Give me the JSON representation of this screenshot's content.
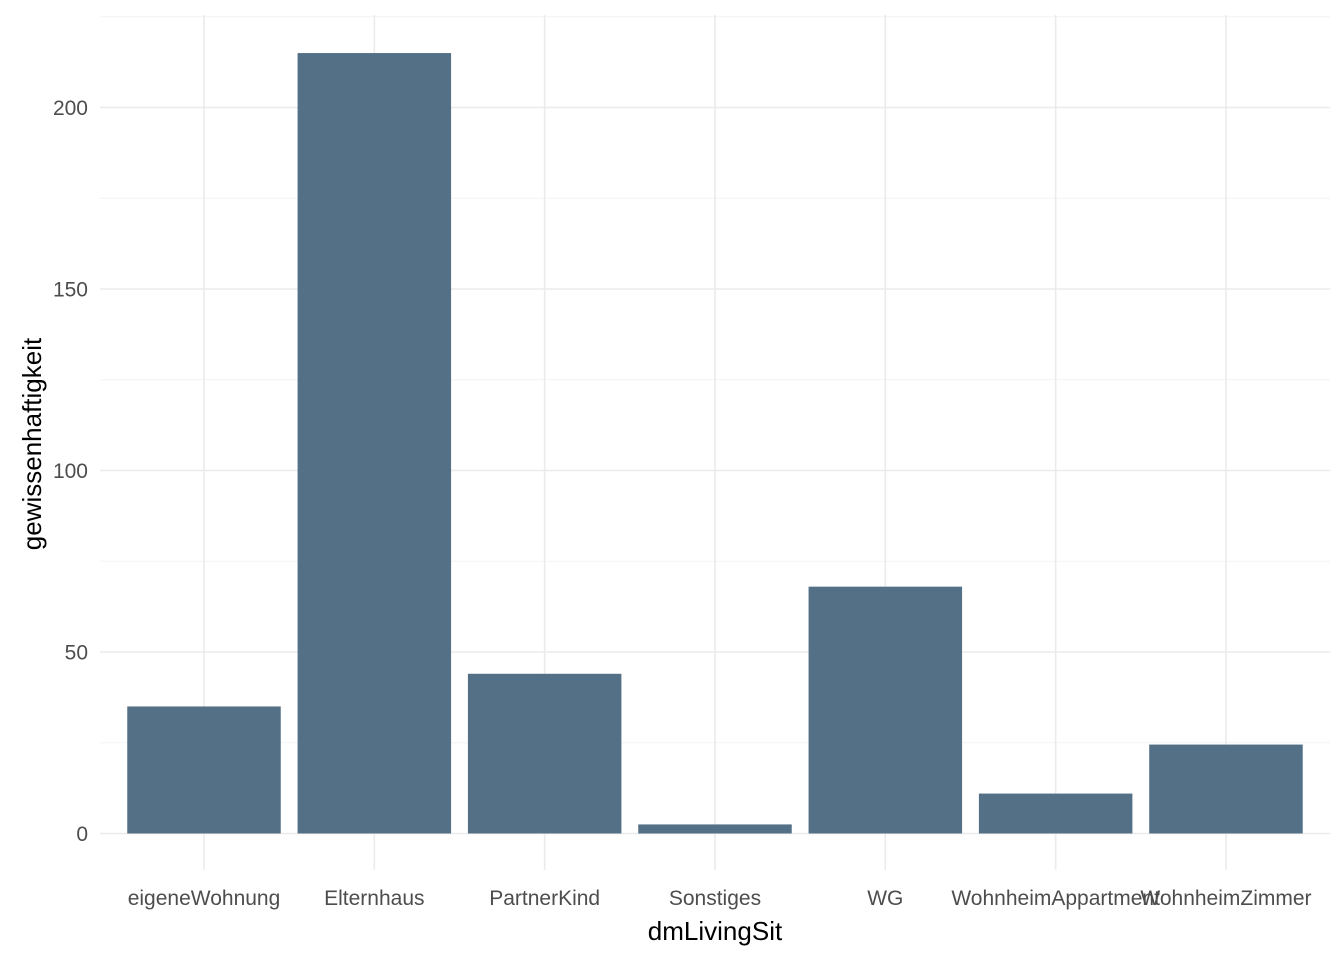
{
  "chart_data": {
    "type": "bar",
    "categories": [
      "eigeneWohnung",
      "Elternhaus",
      "PartnerKind",
      "Sonstiges",
      "WG",
      "WohnheimAppartment",
      "WohnheimZimmer"
    ],
    "values": [
      35,
      215,
      44,
      2.5,
      68,
      11,
      24.5
    ],
    "title": "",
    "xlabel": "dmLivingSit",
    "ylabel": "gewissenhaftigkeit",
    "ylim": [
      -10,
      226
    ],
    "yticks": [
      0,
      50,
      100,
      150,
      200
    ],
    "grid": true,
    "legend": "none",
    "bar_color": "#537087",
    "grid_color": "#ebebeb",
    "text_color": "#4d4d4d"
  }
}
